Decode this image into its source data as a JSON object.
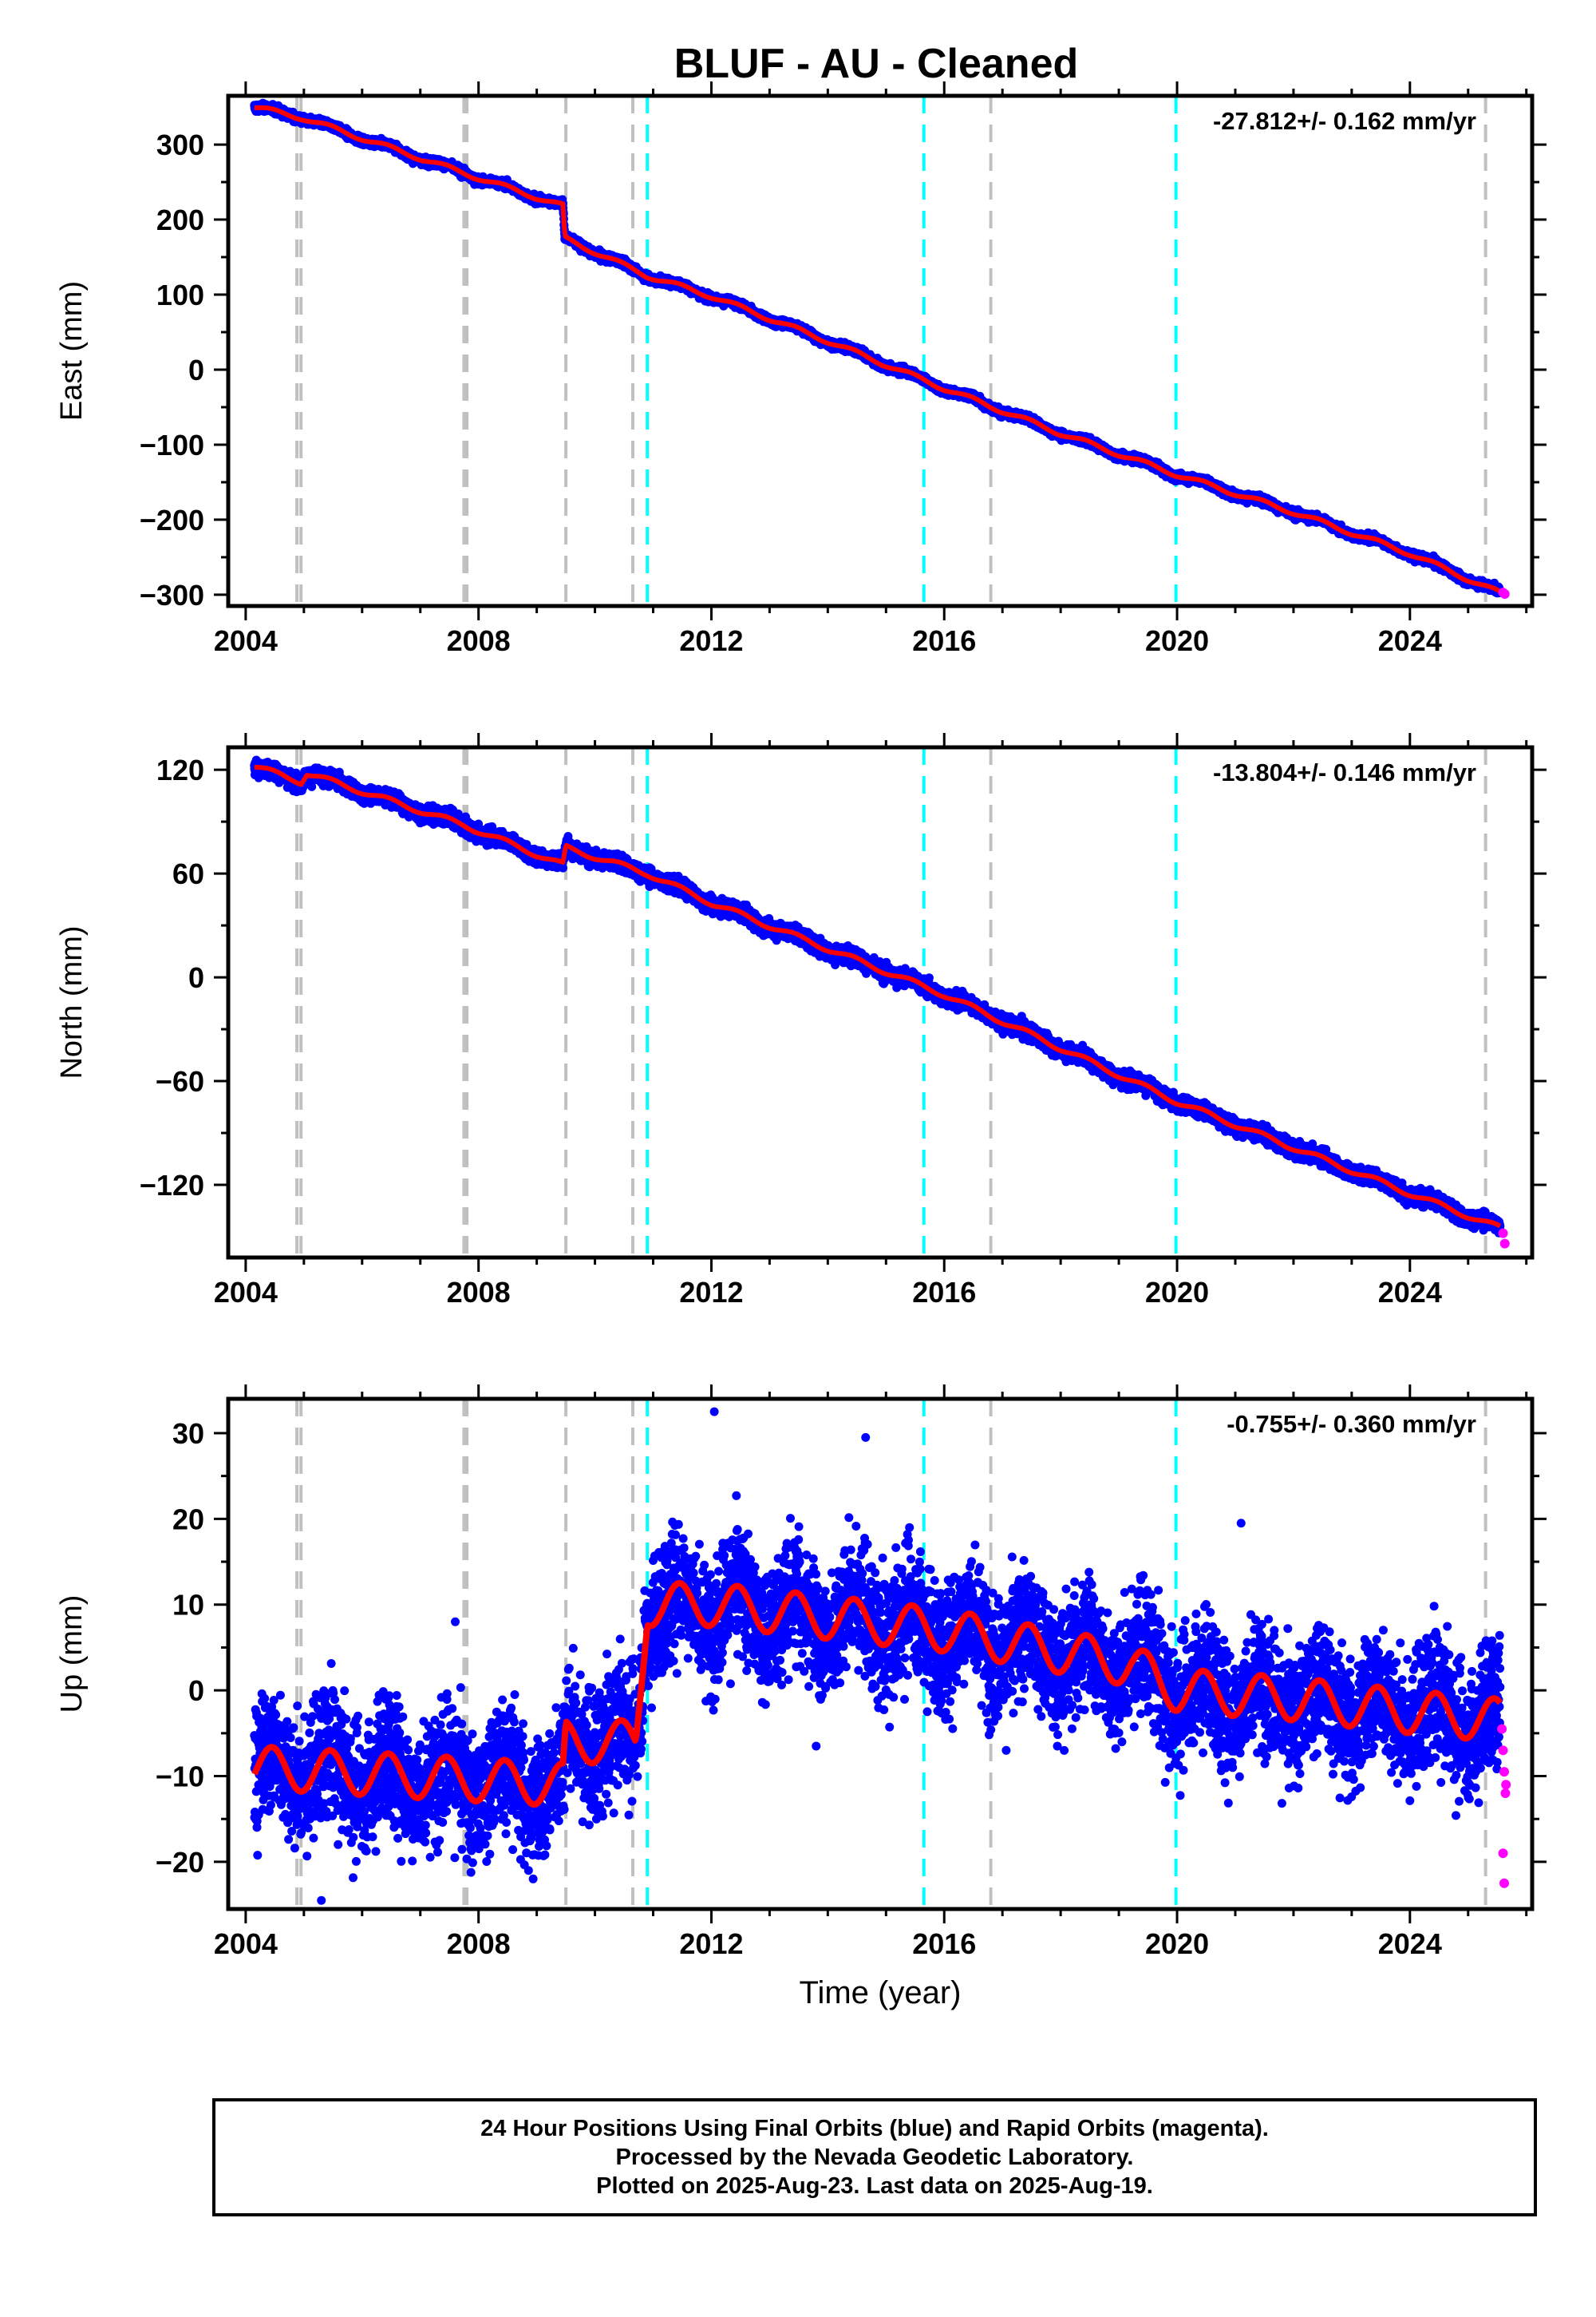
{
  "figure_title": "BLUF  - AU - Cleaned",
  "chart_data": [
    {
      "type": "scatter",
      "panel": "east",
      "ylabel": "East (mm)",
      "xlabel": "",
      "rate_label": "-27.812+/- 0.162 mm/yr",
      "xlim": [
        2003.7,
        2026.1
      ],
      "ylim": [
        -315,
        365
      ],
      "xticks": [
        2004,
        2008,
        2012,
        2016,
        2020,
        2024
      ],
      "yticks": [
        300,
        200,
        100,
        0,
        -100,
        -200,
        -300
      ],
      "ytick_labels": [
        "300",
        "200",
        "100",
        "0",
        "−100",
        "−200",
        "−300"
      ],
      "trend_knots": [
        [
          2004.15,
          350
        ],
        [
          2005.0,
          335
        ],
        [
          2007.75,
          262
        ],
        [
          2009.45,
          218
        ],
        [
          2009.48,
          175
        ],
        [
          2010.9,
          125
        ],
        [
          2012.0,
          98
        ],
        [
          2014.0,
          38
        ],
        [
          2016.0,
          -25
        ],
        [
          2018.0,
          -85
        ],
        [
          2020.0,
          -140
        ],
        [
          2022.0,
          -190
        ],
        [
          2024.0,
          -245
        ],
        [
          2025.55,
          -298
        ]
      ],
      "seasonal_amp": 3,
      "noise": 2.5,
      "outliers": [],
      "rapid_points": [
        [
          2025.6,
          -297
        ],
        [
          2025.63,
          -299
        ]
      ]
    },
    {
      "type": "scatter",
      "panel": "north",
      "ylabel": "North (mm)",
      "xlabel": "",
      "rate_label": "-13.804+/- 0.146 mm/yr",
      "xlim": [
        2003.7,
        2026.1
      ],
      "ylim": [
        -162,
        133
      ],
      "xticks": [
        2004,
        2008,
        2012,
        2016,
        2020,
        2024
      ],
      "yticks": [
        120,
        60,
        0,
        -60,
        -120
      ],
      "ytick_labels": [
        "120",
        "60",
        "0",
        "−60",
        "−120"
      ],
      "trend_knots": [
        [
          2004.15,
          122
        ],
        [
          2004.95,
          113
        ],
        [
          2005.05,
          118
        ],
        [
          2007.75,
          88
        ],
        [
          2009.45,
          65
        ],
        [
          2009.5,
          75
        ],
        [
          2010.9,
          60
        ],
        [
          2012.0,
          43
        ],
        [
          2016.0,
          -10
        ],
        [
          2020.0,
          -72
        ],
        [
          2024.0,
          -125
        ],
        [
          2025.55,
          -145
        ]
      ],
      "seasonal_amp": 1.5,
      "noise": 2.2,
      "outliers": [],
      "rapid_points": [
        [
          2025.6,
          -148
        ],
        [
          2025.63,
          -154
        ]
      ]
    },
    {
      "type": "scatter",
      "panel": "up",
      "ylabel": "Up (mm)",
      "xlabel": "Time (year)",
      "rate_label": "-0.755+/- 0.360 mm/yr",
      "xlim": [
        2003.7,
        2026.1
      ],
      "ylim": [
        -25.5,
        34
      ],
      "xticks": [
        2004,
        2008,
        2012,
        2016,
        2020,
        2024
      ],
      "yticks": [
        30,
        20,
        10,
        0,
        -10,
        -20
      ],
      "ytick_labels": [
        "30",
        "20",
        "10",
        "0",
        "−10",
        "−20"
      ],
      "trend_knots": [
        [
          2004.15,
          -9
        ],
        [
          2009.45,
          -11
        ],
        [
          2009.5,
          -6
        ],
        [
          2010.7,
          -6
        ],
        [
          2010.9,
          10
        ],
        [
          2012.0,
          10
        ],
        [
          2016.0,
          7
        ],
        [
          2019.2,
          3
        ],
        [
          2020.0,
          0
        ],
        [
          2022.0,
          -1
        ],
        [
          2024.0,
          -2.5
        ],
        [
          2025.55,
          -3.5
        ]
      ],
      "seasonal_amp": 2.5,
      "noise": 3.8,
      "outliers": [
        [
          2012.05,
          32.5
        ],
        [
          2014.65,
          29.5
        ],
        [
          2021.1,
          19.5
        ],
        [
          2005.3,
          -24.5
        ],
        [
          2007.6,
          8
        ],
        [
          2013.8,
          -6.5
        ]
      ],
      "rapid_points": [
        [
          2025.58,
          -4.5
        ],
        [
          2025.6,
          -7
        ],
        [
          2025.62,
          -9.5
        ],
        [
          2025.64,
          -12
        ],
        [
          2025.6,
          -19
        ],
        [
          2025.62,
          -22.5
        ],
        [
          2025.65,
          -11
        ]
      ]
    }
  ],
  "equipment_change_years": [
    2004.88,
    2004.95,
    2007.75,
    2007.8,
    2009.5,
    2010.65
  ],
  "late_equipment_change_years": [
    2016.8,
    2025.3
  ],
  "earthquake_years": [
    2010.9,
    2015.65,
    2019.98
  ],
  "colors": {
    "final_orbits": "#0000ff",
    "rapid_orbits": "#ff00ff",
    "trend_model": "#ff0000",
    "equipment_change": "#c0c0c0",
    "earthquake": "#00ffff",
    "axis": "#000000"
  },
  "footer": {
    "line1": "24 Hour Positions Using Final Orbits (blue) and Rapid Orbits (magenta).",
    "line2": "Processed by the Nevada Geodetic Laboratory.",
    "line3": "Plotted on 2025-Aug-23. Last data on 2025-Aug-19."
  }
}
